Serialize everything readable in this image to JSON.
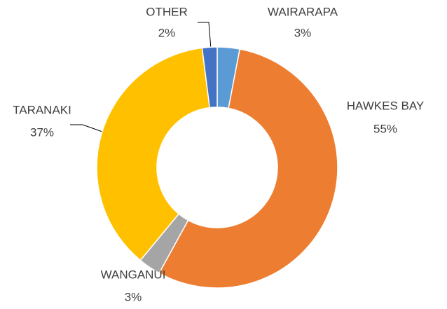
{
  "chart_data": {
    "type": "donut",
    "categories": [
      "WAIRARAPA",
      "HAWKES BAY",
      "WANGANUI",
      "TARANAKI",
      "OTHER"
    ],
    "values": [
      3,
      55,
      3,
      37,
      2
    ],
    "value_labels": [
      "3%",
      "55%",
      "3%",
      "37%",
      "2%"
    ],
    "colors": [
      "#5b9bd5",
      "#ed7d31",
      "#a5a5a5",
      "#ffc000",
      "#4472c4"
    ]
  }
}
